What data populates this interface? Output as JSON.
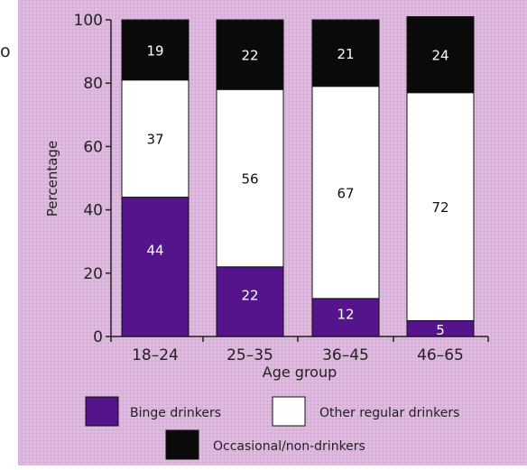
{
  "side_mark": "o",
  "chart_data": {
    "type": "bar",
    "stacked": true,
    "title": "",
    "xlabel": "Age group",
    "ylabel": "Percentage",
    "ylim": [
      0,
      100
    ],
    "yticks": [
      0,
      20,
      40,
      60,
      80,
      100
    ],
    "grid": false,
    "legend_position": "bottom",
    "categories": [
      "18–24",
      "25–35",
      "36–45",
      "46–65"
    ],
    "series": [
      {
        "name": "Binge drinkers",
        "values": [
          44,
          22,
          12,
          5
        ],
        "color": "#55148c",
        "label_color": "#ffffff"
      },
      {
        "name": "Other regular drinkers",
        "values": [
          37,
          56,
          67,
          72
        ],
        "color": "#ffffff",
        "label_color": "#111111"
      },
      {
        "name": "Occasional/non-drinkers",
        "values": [
          19,
          22,
          21,
          24
        ],
        "color": "#0a0a0a",
        "label_color": "#ffffff"
      }
    ]
  },
  "colors": {
    "background": "#dcb6dc",
    "axis": "#222222"
  }
}
